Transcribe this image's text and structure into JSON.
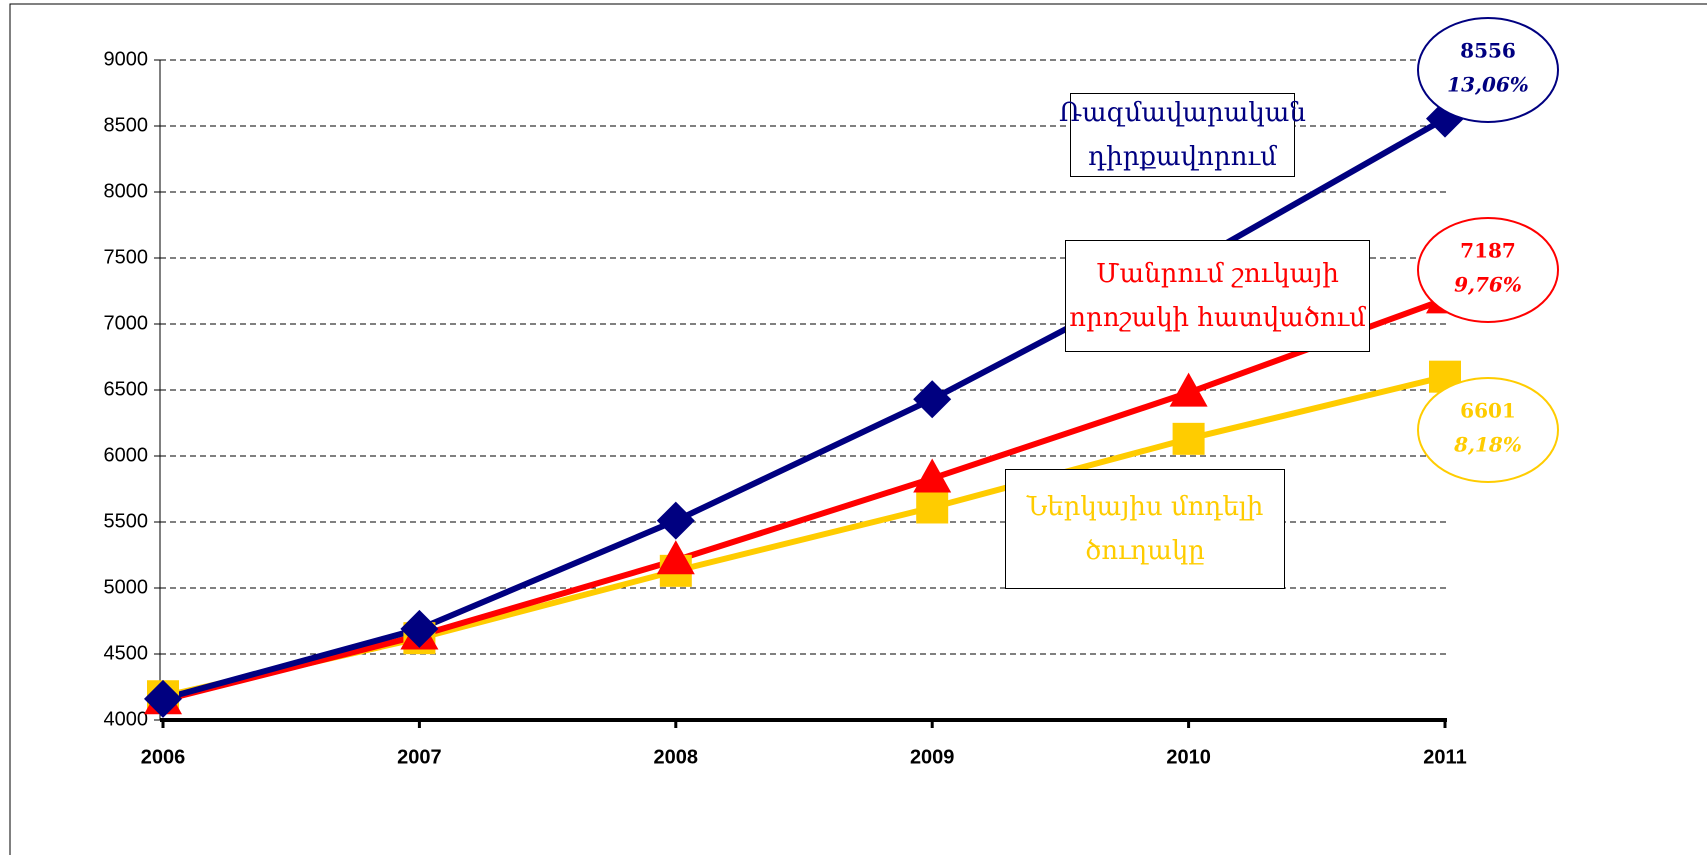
{
  "chart_data": {
    "type": "line",
    "categories": [
      "2006",
      "2007",
      "2008",
      "2009",
      "2010",
      "2011"
    ],
    "ylim": [
      4000,
      9000
    ],
    "yticks": [
      4000,
      4500,
      5000,
      5500,
      6000,
      6500,
      7000,
      7500,
      8000,
      8500,
      9000
    ],
    "grid": true,
    "series": [
      {
        "name": "Ներկայիս մոդելի ծուղակը",
        "color": "#ffcc00",
        "marker": "square",
        "values": [
          4180,
          4620,
          5130,
          5610,
          6130,
          6601
        ],
        "growth": "8,18%"
      },
      {
        "name": "Մանրում շուկայի որոշակի հատվածում",
        "color": "#ff0000",
        "marker": "triangle",
        "values": [
          4150,
          4640,
          5210,
          5830,
          6480,
          7187
        ],
        "growth": "9,76%"
      },
      {
        "name": "Ռազմավարական դիրքավորում",
        "color": "#000080",
        "marker": "diamond",
        "values": [
          4160,
          4690,
          5510,
          6430,
          7450,
          8556
        ],
        "growth": "13,06%"
      }
    ]
  }
}
